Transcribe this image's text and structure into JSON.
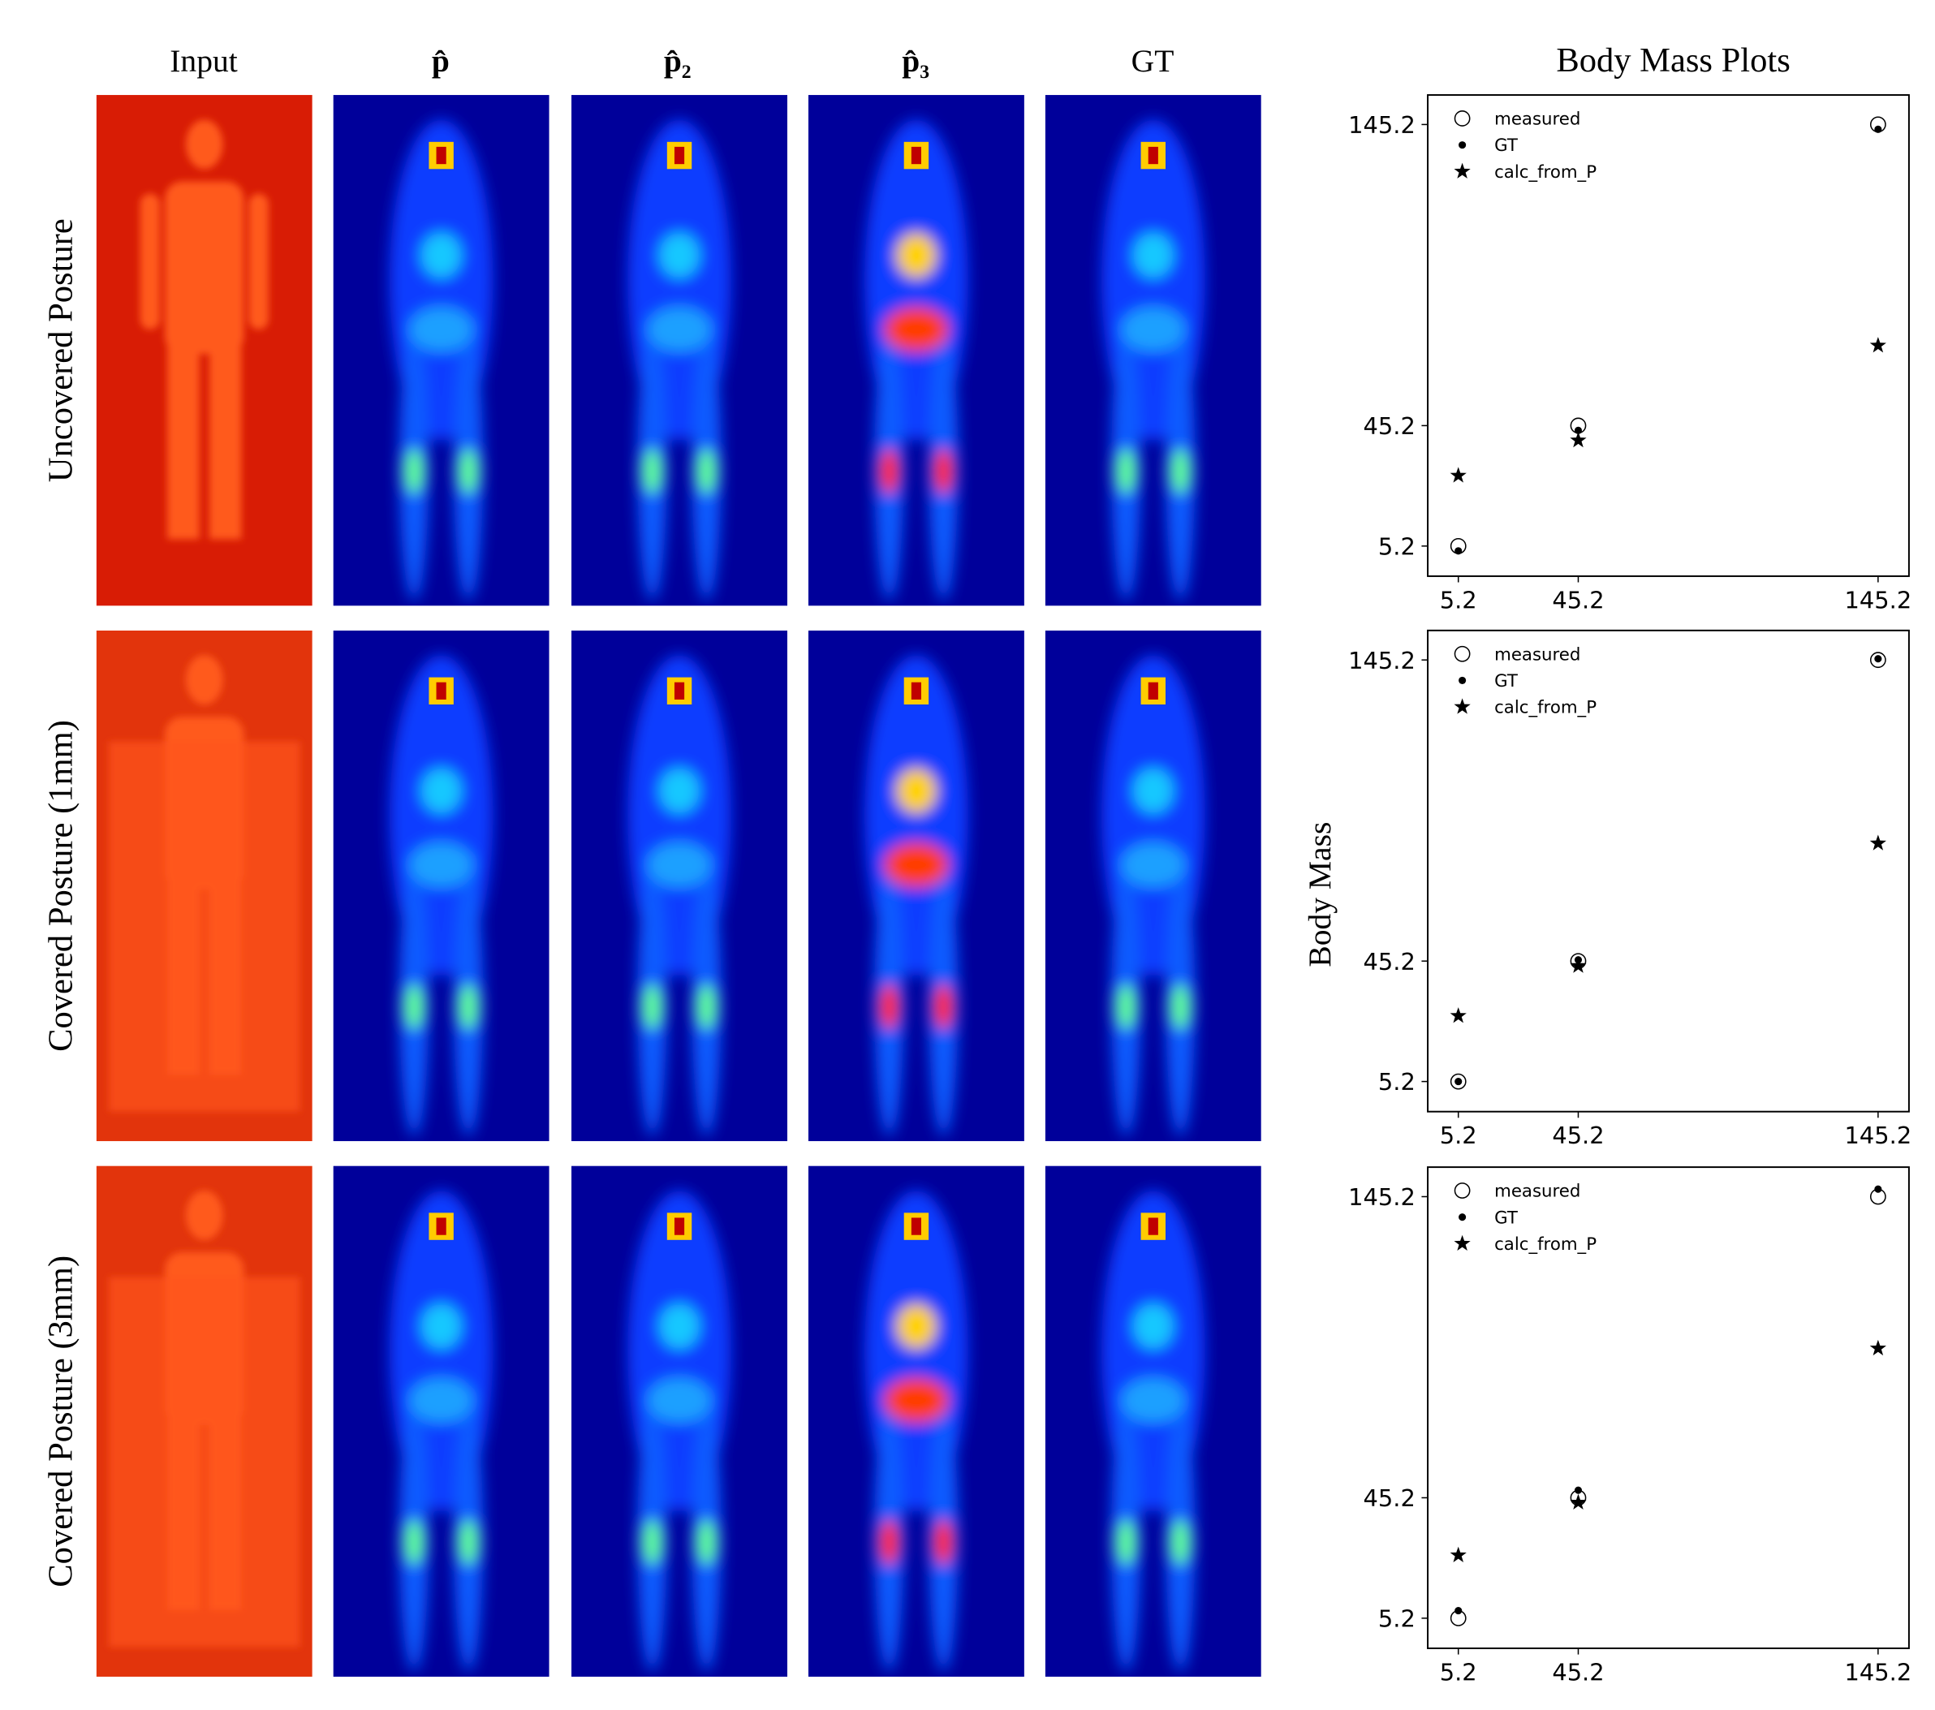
{
  "figure": {
    "column_headers": [
      "Input",
      "p̂",
      "p̂₂",
      "p̂₃",
      "GT"
    ],
    "row_labels": [
      "Uncovered Posture",
      "Covered Posture (1mm)",
      "Covered Posture (3mm)"
    ],
    "plots_title": "Body Mass Plots",
    "plots_ylabel": "Body Mass"
  },
  "chart_data": [
    {
      "type": "scatter",
      "xlim": [
        -5,
        155.5
      ],
      "ylim": [
        -4.8,
        155
      ],
      "xticks": [
        5.2,
        45.2,
        145.2
      ],
      "yticks": [
        5.2,
        45.2,
        145.2
      ],
      "legend": "upper left",
      "series": [
        {
          "name": "measured",
          "marker": "circle-open",
          "color": "#000000",
          "x": [
            5.2,
            45.2,
            145.2
          ],
          "values": [
            5.2,
            45.2,
            145.2
          ]
        },
        {
          "name": "GT",
          "marker": "dot",
          "color": "#000000",
          "x": [
            5.2,
            45.2,
            145.2
          ],
          "values": [
            3.6,
            43.6,
            143.6
          ]
        },
        {
          "name": "calc_from_P",
          "marker": "star",
          "color": "#000000",
          "x": [
            5.2,
            45.2,
            145.2
          ],
          "values": [
            28.6,
            40.3,
            71.8
          ]
        }
      ]
    },
    {
      "type": "scatter",
      "xlim": [
        -5,
        155.5
      ],
      "ylim": [
        -4.8,
        155
      ],
      "xticks": [
        5.2,
        45.2,
        145.2
      ],
      "yticks": [
        5.2,
        45.2,
        145.2
      ],
      "legend": "upper left",
      "series": [
        {
          "name": "measured",
          "marker": "circle-open",
          "color": "#000000",
          "x": [
            5.2,
            45.2,
            145.2
          ],
          "values": [
            5.2,
            45.2,
            145.2
          ]
        },
        {
          "name": "GT",
          "marker": "dot",
          "color": "#000000",
          "x": [
            5.2,
            45.2,
            145.2
          ],
          "values": [
            5.2,
            45.6,
            145.6
          ]
        },
        {
          "name": "calc_from_P",
          "marker": "star",
          "color": "#000000",
          "x": [
            5.2,
            45.2,
            145.2
          ],
          "values": [
            27,
            43.6,
            84.3
          ]
        }
      ]
    },
    {
      "type": "scatter",
      "xlim": [
        -5,
        155.5
      ],
      "ylim": [
        -4.8,
        155
      ],
      "xticks": [
        5.2,
        45.2,
        145.2
      ],
      "yticks": [
        5.2,
        45.2,
        145.2
      ],
      "legend": "upper left",
      "series": [
        {
          "name": "measured",
          "marker": "circle-open",
          "color": "#000000",
          "x": [
            5.2,
            45.2,
            145.2
          ],
          "values": [
            5.2,
            45.2,
            145.2
          ]
        },
        {
          "name": "GT",
          "marker": "dot",
          "color": "#000000",
          "x": [
            5.2,
            45.2,
            145.2
          ],
          "values": [
            7.7,
            47.7,
            147.7
          ]
        },
        {
          "name": "calc_from_P",
          "marker": "star",
          "color": "#000000",
          "x": [
            5.2,
            45.2,
            145.2
          ],
          "values": [
            26.1,
            43.6,
            94.8
          ]
        }
      ]
    }
  ]
}
